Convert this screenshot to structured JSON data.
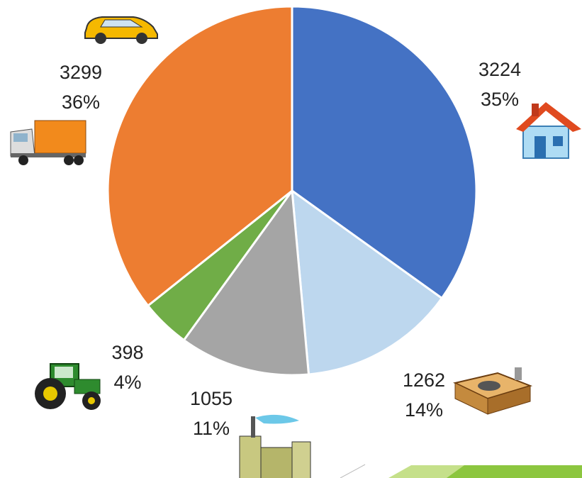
{
  "chart_data": {
    "type": "pie",
    "values": [
      3224,
      1262,
      1055,
      398,
      3299
    ],
    "percent_labels": [
      "35%",
      "14%",
      "11%",
      "4%",
      "36%"
    ],
    "colors": [
      "#4472c4",
      "#bdd7ee",
      "#a5a5a5",
      "#70ad47",
      "#ed7d31"
    ]
  }
}
